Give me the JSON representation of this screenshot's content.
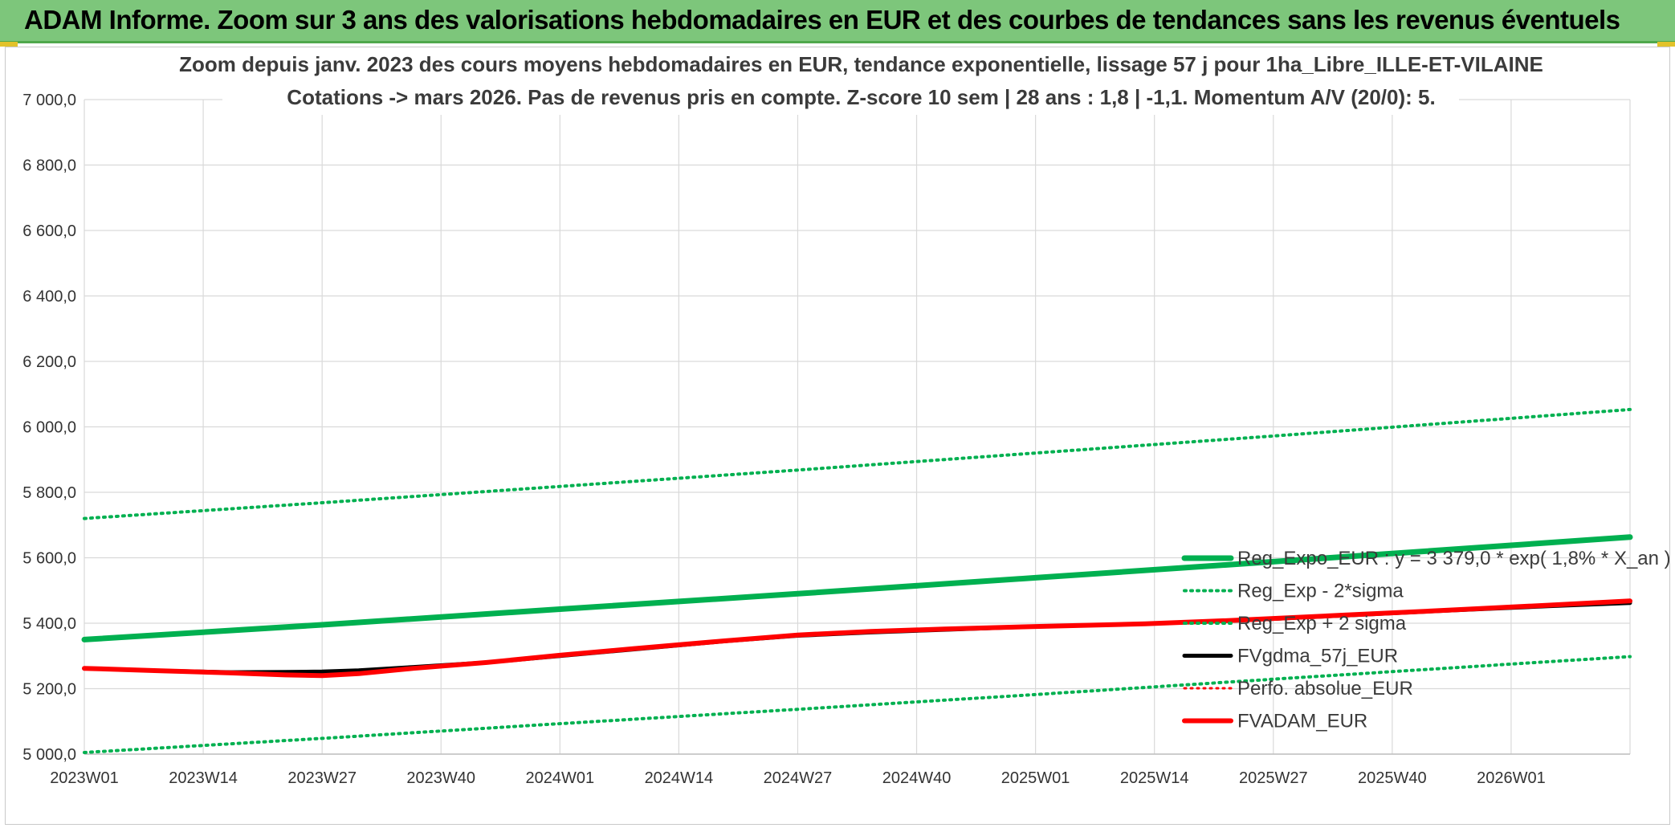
{
  "banner": {
    "title": "ADAM Informe. Zoom sur 3 ans des valorisations hebdomadaires en EUR et des courbes de tendances sans les revenus éventuels",
    "background": "#7dc67b"
  },
  "chart_data": {
    "type": "line",
    "title": "Zoom depuis janv. 2023 des cours moyens hebdomadaires en EUR, tendance exponentielle, lissage 57 j pour 1ha_Libre_ILLE-ET-VILAINE",
    "subtitle": "Cotations -> mars 2026. Pas de revenus pris en compte. Z-score 10 sem | 28 ans : 1,8 | -1,1. Momentum A/V (20/0): 5.",
    "xlabel": "",
    "ylabel": "",
    "x_ticks": [
      "2023W01",
      "2023W14",
      "2023W27",
      "2023W40",
      "2024W01",
      "2024W14",
      "2024W27",
      "2024W40",
      "2025W01",
      "2025W14",
      "2025W27",
      "2025W40",
      "2026W01"
    ],
    "x_range_weeks": [
      0,
      169
    ],
    "ylim": [
      5000,
      7000
    ],
    "y_ticks": [
      5000,
      5200,
      5400,
      5600,
      5800,
      6000,
      6200,
      6400,
      6600,
      6800,
      7000
    ],
    "y_tick_labels": [
      "5 000,0",
      "5 200,0",
      "5 400,0",
      "5 600,0",
      "5 800,0",
      "6 000,0",
      "6 200,0",
      "6 400,0",
      "6 600,0",
      "6 800,0",
      "7 000,0"
    ],
    "grid": true,
    "legend_position": "right",
    "series": [
      {
        "name": "Reg_Expo_EUR : y = 3 379,0 * exp( 1,8% * X_an )",
        "color": "#00b050",
        "style": "solid",
        "width": 7,
        "points": [
          [
            0,
            5350
          ],
          [
            26,
            5395
          ],
          [
            52,
            5443
          ],
          [
            78,
            5490
          ],
          [
            104,
            5539
          ],
          [
            130,
            5588
          ],
          [
            156,
            5638
          ],
          [
            169,
            5663
          ]
        ]
      },
      {
        "name": "Reg_Exp - 2*sigma",
        "color": "#00b050",
        "style": "dotted",
        "width": 4,
        "points": [
          [
            0,
            5005
          ],
          [
            26,
            5048
          ],
          [
            52,
            5093
          ],
          [
            78,
            5137
          ],
          [
            104,
            5182
          ],
          [
            130,
            5229
          ],
          [
            156,
            5275
          ],
          [
            169,
            5298
          ]
        ]
      },
      {
        "name": "Reg_Exp + 2 sigma",
        "color": "#00b050",
        "style": "dotted",
        "width": 4,
        "points": [
          [
            0,
            5720
          ],
          [
            26,
            5768
          ],
          [
            52,
            5818
          ],
          [
            78,
            5868
          ],
          [
            104,
            5920
          ],
          [
            130,
            5972
          ],
          [
            156,
            6026
          ],
          [
            169,
            6053
          ]
        ]
      },
      {
        "name": "FVgdma_57j_EUR",
        "color": "#000000",
        "style": "solid",
        "width": 5,
        "points": [
          [
            0,
            5262
          ],
          [
            8,
            5255
          ],
          [
            16,
            5250
          ],
          [
            22,
            5251
          ],
          [
            26,
            5252
          ],
          [
            30,
            5256
          ],
          [
            36,
            5266
          ],
          [
            44,
            5280
          ],
          [
            52,
            5300
          ],
          [
            60,
            5320
          ],
          [
            70,
            5345
          ],
          [
            78,
            5362
          ],
          [
            86,
            5372
          ],
          [
            94,
            5380
          ],
          [
            104,
            5390
          ],
          [
            116,
            5398
          ],
          [
            126,
            5408
          ],
          [
            138,
            5424
          ],
          [
            150,
            5440
          ],
          [
            160,
            5452
          ],
          [
            169,
            5462
          ]
        ]
      },
      {
        "name": "Perfo. absolue_EUR",
        "color": "#ff0000",
        "style": "dotted",
        "width": 3,
        "points": [
          [
            0,
            5262
          ],
          [
            8,
            5255
          ],
          [
            16,
            5248
          ],
          [
            22,
            5242
          ],
          [
            26,
            5240
          ],
          [
            30,
            5246
          ],
          [
            36,
            5262
          ],
          [
            44,
            5280
          ],
          [
            52,
            5302
          ],
          [
            60,
            5322
          ],
          [
            70,
            5346
          ],
          [
            78,
            5364
          ],
          [
            86,
            5375
          ],
          [
            94,
            5382
          ],
          [
            104,
            5390
          ],
          [
            116,
            5398
          ],
          [
            126,
            5409
          ],
          [
            138,
            5425
          ],
          [
            150,
            5441
          ],
          [
            160,
            5455
          ],
          [
            169,
            5468
          ]
        ]
      },
      {
        "name": "FVADAM_EUR",
        "color": "#ff0000",
        "style": "solid",
        "width": 6,
        "points": [
          [
            0,
            5262
          ],
          [
            8,
            5255
          ],
          [
            16,
            5248
          ],
          [
            22,
            5242
          ],
          [
            26,
            5240
          ],
          [
            30,
            5246
          ],
          [
            36,
            5262
          ],
          [
            44,
            5280
          ],
          [
            52,
            5302
          ],
          [
            60,
            5322
          ],
          [
            70,
            5346
          ],
          [
            78,
            5364
          ],
          [
            86,
            5375
          ],
          [
            94,
            5382
          ],
          [
            104,
            5390
          ],
          [
            116,
            5398
          ],
          [
            126,
            5409
          ],
          [
            138,
            5425
          ],
          [
            150,
            5441
          ],
          [
            160,
            5455
          ],
          [
            169,
            5468
          ]
        ]
      }
    ]
  }
}
